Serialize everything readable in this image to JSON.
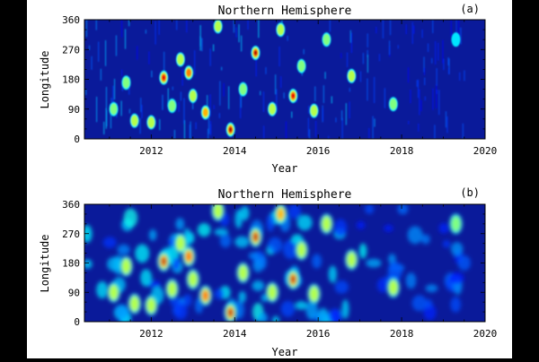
{
  "chart_data": [
    {
      "type": "heatmap",
      "title": "Northern Hemisphere",
      "panel_label": "(a)",
      "xlabel": "Year",
      "ylabel": "Longitude",
      "xlim": [
        2010.4,
        2020
      ],
      "ylim": [
        0,
        360
      ],
      "x_ticks": [
        2012,
        2014,
        2016,
        2018,
        2020
      ],
      "y_ticks": [
        0,
        90,
        180,
        270,
        360
      ],
      "colormap": "jet",
      "style": "raw",
      "hotspots": [
        {
          "x": 2013.9,
          "y": 28,
          "v": 1.0
        },
        {
          "x": 2012.3,
          "y": 185,
          "v": 0.9
        },
        {
          "x": 2014.5,
          "y": 260,
          "v": 0.95
        },
        {
          "x": 2015.4,
          "y": 130,
          "v": 0.9
        },
        {
          "x": 2012.9,
          "y": 200,
          "v": 0.75
        },
        {
          "x": 2013.3,
          "y": 80,
          "v": 0.7
        },
        {
          "x": 2012.7,
          "y": 240,
          "v": 0.6
        },
        {
          "x": 2011.6,
          "y": 55,
          "v": 0.6
        },
        {
          "x": 2012.0,
          "y": 50,
          "v": 0.55
        },
        {
          "x": 2015.1,
          "y": 330,
          "v": 0.65
        },
        {
          "x": 2013.6,
          "y": 340,
          "v": 0.6
        },
        {
          "x": 2016.8,
          "y": 190,
          "v": 0.55
        },
        {
          "x": 2014.9,
          "y": 90,
          "v": 0.6
        },
        {
          "x": 2017.8,
          "y": 105,
          "v": 0.5
        },
        {
          "x": 2019.3,
          "y": 300,
          "v": 0.45
        },
        {
          "x": 2011.1,
          "y": 90,
          "v": 0.5
        },
        {
          "x": 2015.9,
          "y": 85,
          "v": 0.55
        },
        {
          "x": 2016.2,
          "y": 300,
          "v": 0.5
        },
        {
          "x": 2014.2,
          "y": 150,
          "v": 0.5
        },
        {
          "x": 2013.0,
          "y": 130,
          "v": 0.55
        },
        {
          "x": 2011.4,
          "y": 170,
          "v": 0.5
        },
        {
          "x": 2015.6,
          "y": 220,
          "v": 0.5
        },
        {
          "x": 2012.5,
          "y": 100,
          "v": 0.5
        }
      ]
    },
    {
      "type": "heatmap",
      "title": "Northern Hemisphere",
      "panel_label": "(b)",
      "xlabel": "Year",
      "ylabel": "Longitude",
      "xlim": [
        2010.4,
        2020
      ],
      "ylim": [
        0,
        360
      ],
      "x_ticks": [
        2012,
        2014,
        2016,
        2018,
        2020
      ],
      "y_ticks": [
        0,
        90,
        180,
        270,
        360
      ],
      "colormap": "jet",
      "style": "smoothed",
      "hotspots": [
        {
          "x": 2013.9,
          "y": 28,
          "v": 1.0
        },
        {
          "x": 2012.3,
          "y": 185,
          "v": 0.95
        },
        {
          "x": 2014.5,
          "y": 260,
          "v": 0.95
        },
        {
          "x": 2015.4,
          "y": 130,
          "v": 0.95
        },
        {
          "x": 2012.9,
          "y": 200,
          "v": 0.8
        },
        {
          "x": 2013.3,
          "y": 80,
          "v": 0.75
        },
        {
          "x": 2012.7,
          "y": 240,
          "v": 0.65
        },
        {
          "x": 2011.6,
          "y": 55,
          "v": 0.65
        },
        {
          "x": 2012.0,
          "y": 50,
          "v": 0.6
        },
        {
          "x": 2015.1,
          "y": 330,
          "v": 0.7
        },
        {
          "x": 2013.6,
          "y": 340,
          "v": 0.65
        },
        {
          "x": 2016.8,
          "y": 190,
          "v": 0.6
        },
        {
          "x": 2014.9,
          "y": 90,
          "v": 0.65
        },
        {
          "x": 2017.8,
          "y": 105,
          "v": 0.55
        },
        {
          "x": 2019.3,
          "y": 300,
          "v": 0.5
        },
        {
          "x": 2011.1,
          "y": 90,
          "v": 0.55
        },
        {
          "x": 2015.9,
          "y": 85,
          "v": 0.6
        },
        {
          "x": 2016.2,
          "y": 300,
          "v": 0.55
        },
        {
          "x": 2014.2,
          "y": 150,
          "v": 0.55
        },
        {
          "x": 2013.0,
          "y": 130,
          "v": 0.6
        },
        {
          "x": 2011.4,
          "y": 170,
          "v": 0.55
        },
        {
          "x": 2015.6,
          "y": 220,
          "v": 0.55
        },
        {
          "x": 2012.5,
          "y": 100,
          "v": 0.55
        }
      ]
    }
  ]
}
